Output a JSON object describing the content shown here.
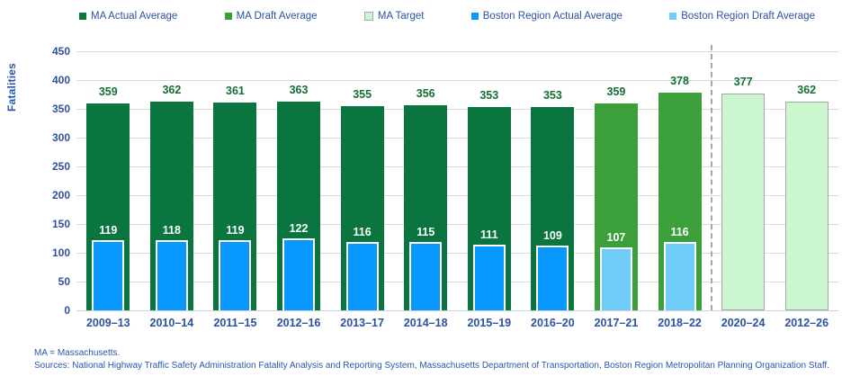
{
  "chart_data": {
    "type": "bar",
    "title": "",
    "xlabel": "",
    "ylabel": "Fatalities",
    "ylim": [
      0,
      450
    ],
    "ytick_step": 50,
    "yticks": [
      0,
      50,
      100,
      150,
      200,
      250,
      300,
      350,
      400,
      450
    ],
    "grid": true,
    "legend_position": "top",
    "categories": [
      "2009–13",
      "2010–14",
      "2011–15",
      "2012–16",
      "2013–17",
      "2014–18",
      "2015–19",
      "2016–20",
      "2017–21",
      "2018–22",
      "2020–24",
      "2012–26"
    ],
    "series": [
      {
        "name": "MA Actual Average",
        "role": "outer",
        "color": "#0b7540",
        "label_color": "#156f35",
        "values": [
          359,
          362,
          361,
          363,
          355,
          356,
          353,
          353,
          null,
          null,
          null,
          null
        ]
      },
      {
        "name": "MA Draft Average",
        "role": "outer",
        "color": "#3ba03a",
        "label_color": "#156f35",
        "values": [
          null,
          null,
          null,
          null,
          null,
          null,
          null,
          null,
          359,
          378,
          null,
          null
        ]
      },
      {
        "name": "MA Target",
        "role": "outer",
        "color": "#ccf6cd",
        "border_color": "#a6a6a6",
        "label_color": "#156f35",
        "values": [
          null,
          null,
          null,
          null,
          null,
          null,
          null,
          null,
          null,
          null,
          377,
          362
        ]
      },
      {
        "name": "Boston Region Actual Average",
        "role": "inner",
        "color": "#0999fe",
        "label_color": "#ffffff",
        "values": [
          119,
          118,
          119,
          122,
          116,
          115,
          111,
          109,
          null,
          null,
          null,
          null
        ]
      },
      {
        "name": "Boston Region Draft Average",
        "role": "inner",
        "color": "#6fcdf7",
        "label_color": "#ffffff",
        "values": [
          null,
          null,
          null,
          null,
          null,
          null,
          null,
          null,
          107,
          116,
          null,
          null
        ]
      }
    ],
    "separator_before_category_index": 10,
    "separator_color": "#a6a6a6",
    "gridline_color": "#d9d9d9"
  },
  "footer": {
    "line1": "MA = Massachusetts.",
    "line2": "Sources: National Highway Traffic Safety Administration Fatality Analysis and Reporting System, Massachusetts Department of Transportation, Boston Region Metropolitan Planning Organization Staff."
  }
}
